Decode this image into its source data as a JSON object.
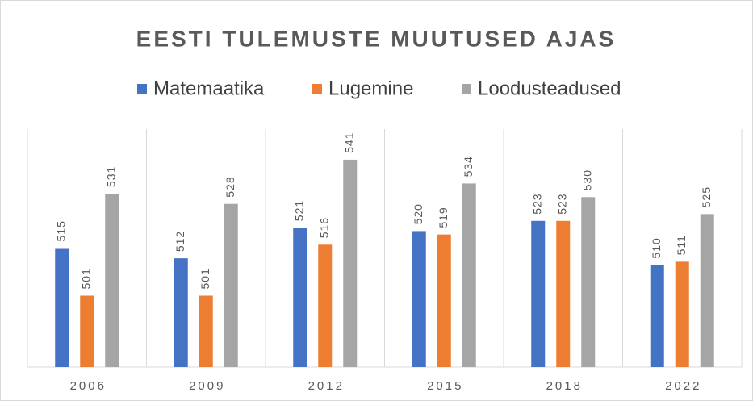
{
  "chart_data": {
    "type": "bar",
    "title": "EESTI TULEMUSTE MUUTUSED AJAS",
    "categories": [
      "2006",
      "2009",
      "2012",
      "2015",
      "2018",
      "2022"
    ],
    "series": [
      {
        "name": "Matemaatika",
        "color": "#4472c4",
        "values": [
          515,
          512,
          521,
          520,
          523,
          510
        ]
      },
      {
        "name": "Lugemine",
        "color": "#ed7d31",
        "values": [
          501,
          501,
          516,
          519,
          523,
          511
        ]
      },
      {
        "name": "Loodusteadused",
        "color": "#a5a5a5",
        "values": [
          531,
          528,
          541,
          534,
          530,
          525
        ]
      }
    ],
    "ylim": [
      480,
      550
    ],
    "grid": true,
    "legend": "top"
  }
}
